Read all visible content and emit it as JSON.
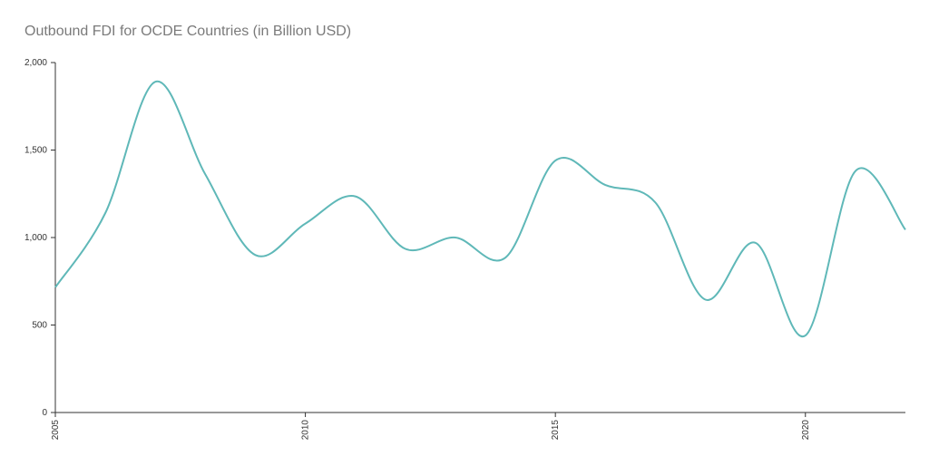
{
  "chart_data": {
    "type": "line",
    "title": "Outbound FDI for OCDE Countries (in Billion USD)",
    "xlabel": "",
    "ylabel": "",
    "x": [
      2005,
      2006,
      2007,
      2008,
      2009,
      2010,
      2011,
      2012,
      2013,
      2014,
      2015,
      2016,
      2017,
      2018,
      2019,
      2020,
      2021,
      2022
    ],
    "series": [
      {
        "values": [
          715,
          1140,
          1890,
          1360,
          900,
          1080,
          1235,
          935,
          1000,
          885,
          1440,
          1300,
          1200,
          645,
          970,
          440,
          1380,
          1045
        ]
      }
    ],
    "xlim": [
      2005,
      2022
    ],
    "ylim": [
      0,
      2000
    ],
    "x_ticks": [
      "2005",
      "2010",
      "2015",
      "2020"
    ],
    "y_ticks": [
      "0",
      "500",
      "1,000",
      "1,500",
      "2,000"
    ],
    "line_color": "#5fb8b8",
    "axis_color": "#333333",
    "grid": false,
    "legend": "none"
  }
}
